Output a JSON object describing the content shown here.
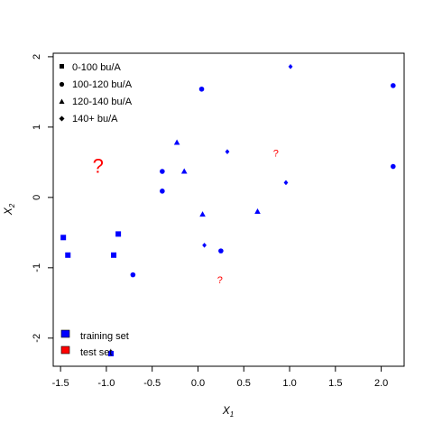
{
  "chart_data": {
    "type": "scatter",
    "title": "",
    "xlabel": "X",
    "xlabel_sub": "1",
    "ylabel": "X",
    "ylabel_sub": "2",
    "xlim": [
      -1.58,
      2.25
    ],
    "ylim": [
      -2.4,
      2.05
    ],
    "xticks": [
      -1.5,
      -1.0,
      -0.5,
      0.0,
      0.5,
      1.0,
      1.5,
      2.0
    ],
    "xtick_labels": [
      "-1.5",
      "-1.0",
      "-0.5",
      "0.0",
      "0.5",
      "1.0",
      "1.5",
      "2.0"
    ],
    "yticks": [
      -2,
      -1,
      0,
      1,
      2
    ],
    "ytick_labels": [
      "-2",
      "-1",
      "0",
      "1",
      "2"
    ],
    "grid": false,
    "colors": {
      "training": "#0000ff",
      "test": "#ff0000"
    },
    "legend_yield": {
      "placement": "top-left",
      "items": [
        {
          "label": "0-100 bu/A",
          "marker": "square"
        },
        {
          "label": "100-120 bu/A",
          "marker": "circle"
        },
        {
          "label": "120-140 bu/A",
          "marker": "triangle"
        },
        {
          "label": "140+ bu/A",
          "marker": "diamond"
        }
      ]
    },
    "legend_set": {
      "placement": "bottom-left",
      "items": [
        {
          "label": "training set",
          "color": "#0000ff"
        },
        {
          "label": "test set",
          "color": "#ff0000"
        }
      ]
    },
    "series": [
      {
        "name": "0-100 bu/A",
        "marker": "square",
        "points": [
          [
            -1.47,
            -0.57
          ],
          [
            -1.42,
            -0.82
          ],
          [
            -0.87,
            -0.52
          ],
          [
            -0.92,
            -0.82
          ],
          [
            -0.95,
            -2.22
          ]
        ]
      },
      {
        "name": "100-120 bu/A",
        "marker": "circle",
        "points": [
          [
            0.04,
            1.54
          ],
          [
            2.13,
            1.59
          ],
          [
            -0.39,
            0.37
          ],
          [
            -0.39,
            0.09
          ],
          [
            -0.71,
            -1.1
          ],
          [
            0.25,
            -0.76
          ],
          [
            2.13,
            0.44
          ]
        ]
      },
      {
        "name": "120-140 bu/A",
        "marker": "triangle",
        "points": [
          [
            -0.23,
            0.78
          ],
          [
            -0.15,
            0.37
          ],
          [
            0.05,
            -0.24
          ],
          [
            0.65,
            -0.2
          ]
        ]
      },
      {
        "name": "140+ bu/A",
        "marker": "diamond",
        "points": [
          [
            1.01,
            1.86
          ],
          [
            0.32,
            0.65
          ],
          [
            0.96,
            0.21
          ],
          [
            0.07,
            -0.68
          ]
        ]
      }
    ],
    "test_points": [
      {
        "label": "?",
        "x": -1.09,
        "y": 0.45,
        "size": "large"
      },
      {
        "label": "?",
        "x": 0.85,
        "y": 0.62,
        "size": "small"
      },
      {
        "label": "?",
        "x": 0.24,
        "y": -1.18,
        "size": "small"
      }
    ]
  }
}
